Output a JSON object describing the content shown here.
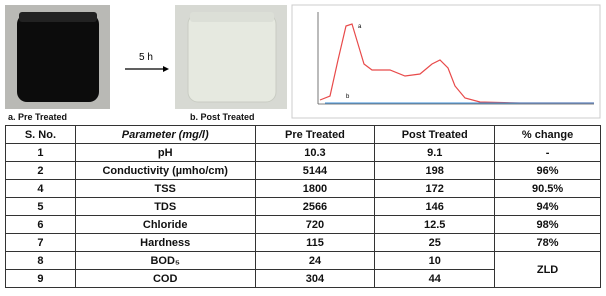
{
  "figure": {
    "photo_a_caption": "a. Pre Treated",
    "photo_b_caption": "b. Post Treated",
    "arrow_label": "5 h",
    "spectrum_labels": [
      "a",
      "b"
    ]
  },
  "table": {
    "headers": [
      "S. No.",
      "Parameter (mg/l)",
      "Pre Treated",
      "Post Treated",
      "% change"
    ],
    "rows": [
      [
        "1",
        "pH",
        "10.3",
        "9.1",
        "-"
      ],
      [
        "2",
        "Conductivity (µmho/cm)",
        "5144",
        "198",
        "96%"
      ],
      [
        "4",
        "TSS",
        "1800",
        "172",
        "90.5%"
      ],
      [
        "5",
        "TDS",
        "2566",
        "146",
        "94%"
      ],
      [
        "6",
        "Chloride",
        "720",
        "12.5",
        "98%"
      ],
      [
        "7",
        "Hardness",
        "115",
        "25",
        "78%"
      ],
      [
        "8",
        "BOD₅",
        "24",
        "10",
        "ZLD"
      ],
      [
        "9",
        "COD",
        "304",
        "44"
      ]
    ]
  }
}
